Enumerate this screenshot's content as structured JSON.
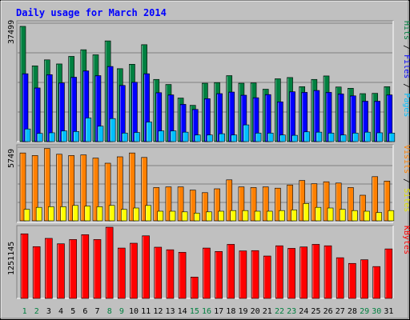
{
  "chart_data": {
    "type": "bar",
    "title": "Daily usage for March 2014",
    "categories": [
      "1",
      "2",
      "3",
      "4",
      "5",
      "6",
      "7",
      "8",
      "9",
      "10",
      "11",
      "12",
      "13",
      "14",
      "15",
      "16",
      "17",
      "18",
      "19",
      "20",
      "21",
      "22",
      "23",
      "24",
      "25",
      "26",
      "27",
      "28",
      "29",
      "30",
      "31"
    ],
    "weekend_days": [
      "1",
      "2",
      "8",
      "9",
      "15",
      "16",
      "22",
      "23",
      "29",
      "30"
    ],
    "panels": [
      {
        "id": "hits",
        "max_label": "37499",
        "ylim": [
          0,
          37499
        ],
        "grid": true,
        "series": [
          {
            "name": "Hits",
            "color": "#008040",
            "values": [
              36500,
              24000,
              25900,
              24600,
              27000,
              29100,
              27500,
              31900,
              23100,
              24500,
              30700,
              19700,
              18100,
              13800,
              11500,
              18500,
              18700,
              20900,
              18500,
              18600,
              16600,
              19900,
              20300,
              17400,
              19700,
              20800,
              17300,
              16900,
              15200,
              15300,
              17400
            ]
          },
          {
            "name": "Files",
            "color": "#0000ff",
            "values": [
              21500,
              17000,
              21200,
              18600,
              20400,
              22400,
              20900,
              23800,
              17800,
              18800,
              21500,
              15500,
              14800,
              11800,
              10200,
              13600,
              15200,
              15700,
              14700,
              13900,
              14900,
              12600,
              15800,
              15600,
              16200,
              15600,
              15100,
              14500,
              12800,
              12800,
              14800
            ]
          },
          {
            "name": "Pages",
            "color": "#00c0ff",
            "values": [
              4000,
              2600,
              2800,
              3400,
              3200,
              7500,
              4900,
              7300,
              2700,
              2900,
              6200,
              3400,
              3400,
              3000,
              2100,
              2100,
              2500,
              2100,
              5300,
              2700,
              2700,
              2100,
              2000,
              3100,
              3000,
              2700,
              2100,
              2700,
              3000,
              2800,
              2700
            ]
          }
        ],
        "legend": [
          "Pages",
          "Files",
          "Hits"
        ]
      },
      {
        "id": "visits",
        "max_label": "5749",
        "ylim": [
          0,
          5749
        ],
        "grid": true,
        "series": [
          {
            "name": "Visits",
            "color": "#ff8000",
            "values": [
              5300,
              5100,
              5650,
              5200,
              5100,
              5150,
              4900,
              4500,
              5000,
              5300,
              4950,
              2600,
              2650,
              2650,
              2400,
              2200,
              2500,
              3200,
              2650,
              2600,
              2650,
              2550,
              2800,
              3150,
              2900,
              3050,
              2950,
              2600,
              2000,
              3450,
              3100
            ]
          },
          {
            "name": "Sites",
            "color": "#ffff00",
            "values": [
              900,
              1050,
              1100,
              1100,
              1200,
              1150,
              1100,
              1200,
              900,
              1000,
              1200,
              750,
              750,
              700,
              600,
              700,
              750,
              800,
              800,
              750,
              750,
              800,
              850,
              1350,
              1050,
              1000,
              900,
              800,
              750,
              650,
              800
            ]
          }
        ],
        "legend": [
          "Sites",
          "Visits"
        ]
      },
      {
        "id": "kbytes",
        "max_label": "1251145",
        "ylim": [
          0,
          1251145
        ],
        "grid": false,
        "series": [
          {
            "name": "KBytes",
            "color": "#ff0000",
            "values": [
              1135000,
              910000,
              1055000,
              960000,
              1035000,
              1120000,
              1035000,
              1251145,
              885000,
              970000,
              1100000,
              900000,
              855000,
              810000,
              375000,
              885000,
              825000,
              950000,
              835000,
              840000,
              745000,
              925000,
              880000,
              905000,
              950000,
              925000,
              715000,
              615000,
              680000,
              560000,
              870000
            ]
          }
        ],
        "legend": [
          "KBytes"
        ]
      }
    ]
  }
}
